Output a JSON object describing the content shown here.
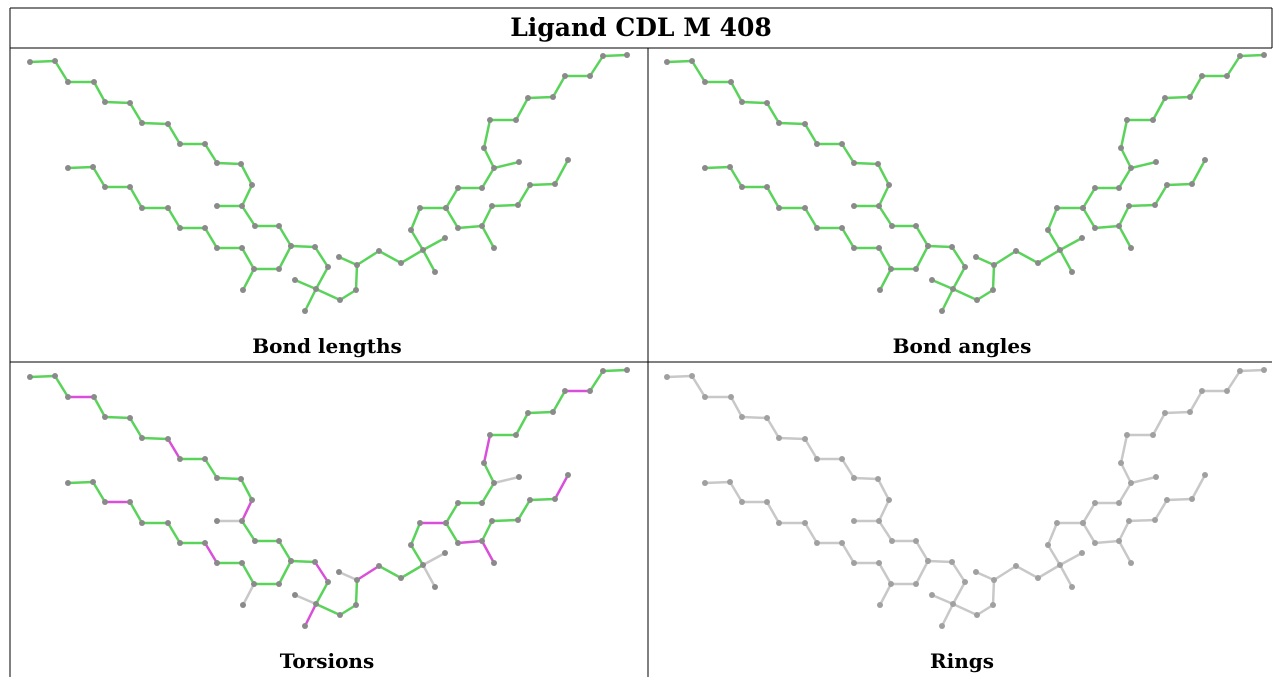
{
  "title": "Ligand CDL M 408",
  "panels": [
    {
      "caption": "Bond lengths"
    },
    {
      "caption": "Bond angles"
    },
    {
      "caption": "Torsions"
    },
    {
      "caption": "Rings"
    }
  ]
}
